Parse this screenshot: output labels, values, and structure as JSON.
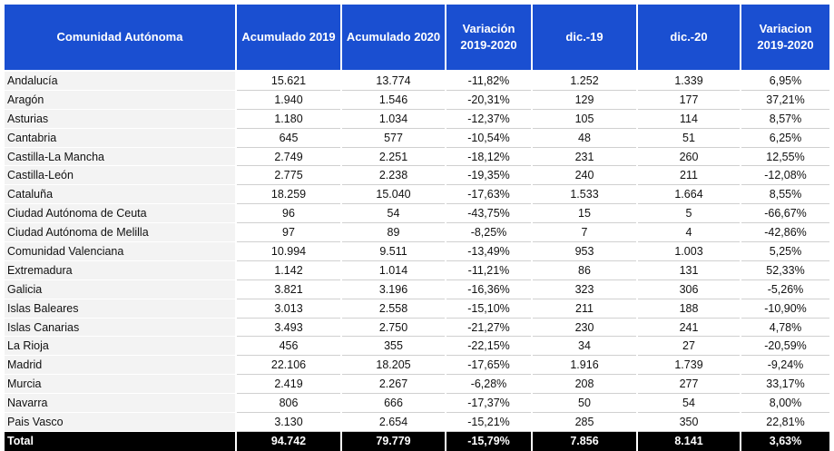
{
  "headers": [
    "Comunidad Autónoma",
    "Acumulado 2019",
    "Acumulado 2020",
    "Variación\n2019-2020",
    "dic.-19",
    "dic.-20",
    "Variacion\n2019-2020"
  ],
  "rows": [
    [
      "Andalucía",
      "15.621",
      "13.774",
      "-11,82%",
      "1.252",
      "1.339",
      "6,95%"
    ],
    [
      "Aragón",
      "1.940",
      "1.546",
      "-20,31%",
      "129",
      "177",
      "37,21%"
    ],
    [
      "Asturias",
      "1.180",
      "1.034",
      "-12,37%",
      "105",
      "114",
      "8,57%"
    ],
    [
      "Cantabria",
      "645",
      "577",
      "-10,54%",
      "48",
      "51",
      "6,25%"
    ],
    [
      "Castilla-La Mancha",
      "2.749",
      "2.251",
      "-18,12%",
      "231",
      "260",
      "12,55%"
    ],
    [
      "Castilla-León",
      "2.775",
      "2.238",
      "-19,35%",
      "240",
      "211",
      "-12,08%"
    ],
    [
      "Cataluña",
      "18.259",
      "15.040",
      "-17,63%",
      "1.533",
      "1.664",
      "8,55%"
    ],
    [
      "Ciudad Autónoma de Ceuta",
      "96",
      "54",
      "-43,75%",
      "15",
      "5",
      "-66,67%"
    ],
    [
      "Ciudad Autónoma de Melilla",
      "97",
      "89",
      "-8,25%",
      "7",
      "4",
      "-42,86%"
    ],
    [
      "Comunidad Valenciana",
      "10.994",
      "9.511",
      "-13,49%",
      "953",
      "1.003",
      "5,25%"
    ],
    [
      "Extremadura",
      "1.142",
      "1.014",
      "-11,21%",
      "86",
      "131",
      "52,33%"
    ],
    [
      "Galicia",
      "3.821",
      "3.196",
      "-16,36%",
      "323",
      "306",
      "-5,26%"
    ],
    [
      "Islas Baleares",
      "3.013",
      "2.558",
      "-15,10%",
      "211",
      "188",
      "-10,90%"
    ],
    [
      "Islas Canarias",
      "3.493",
      "2.750",
      "-21,27%",
      "230",
      "241",
      "4,78%"
    ],
    [
      "La Rioja",
      "456",
      "355",
      "-22,15%",
      "34",
      "27",
      "-20,59%"
    ],
    [
      "Madrid",
      "22.106",
      "18.205",
      "-17,65%",
      "1.916",
      "1.739",
      "-9,24%"
    ],
    [
      "Murcia",
      "2.419",
      "2.267",
      "-6,28%",
      "208",
      "277",
      "33,17%"
    ],
    [
      "Navarra",
      "806",
      "666",
      "-17,37%",
      "50",
      "54",
      "8,00%"
    ],
    [
      "Pais Vasco",
      "3.130",
      "2.654",
      "-15,21%",
      "285",
      "350",
      "22,81%"
    ]
  ],
  "total": [
    "Total",
    "94.742",
    "79.779",
    "-15,79%",
    "7.856",
    "8.141",
    "3,63%"
  ],
  "colors": {
    "header_bg": "#1a4fd1",
    "total_bg": "#000000"
  }
}
